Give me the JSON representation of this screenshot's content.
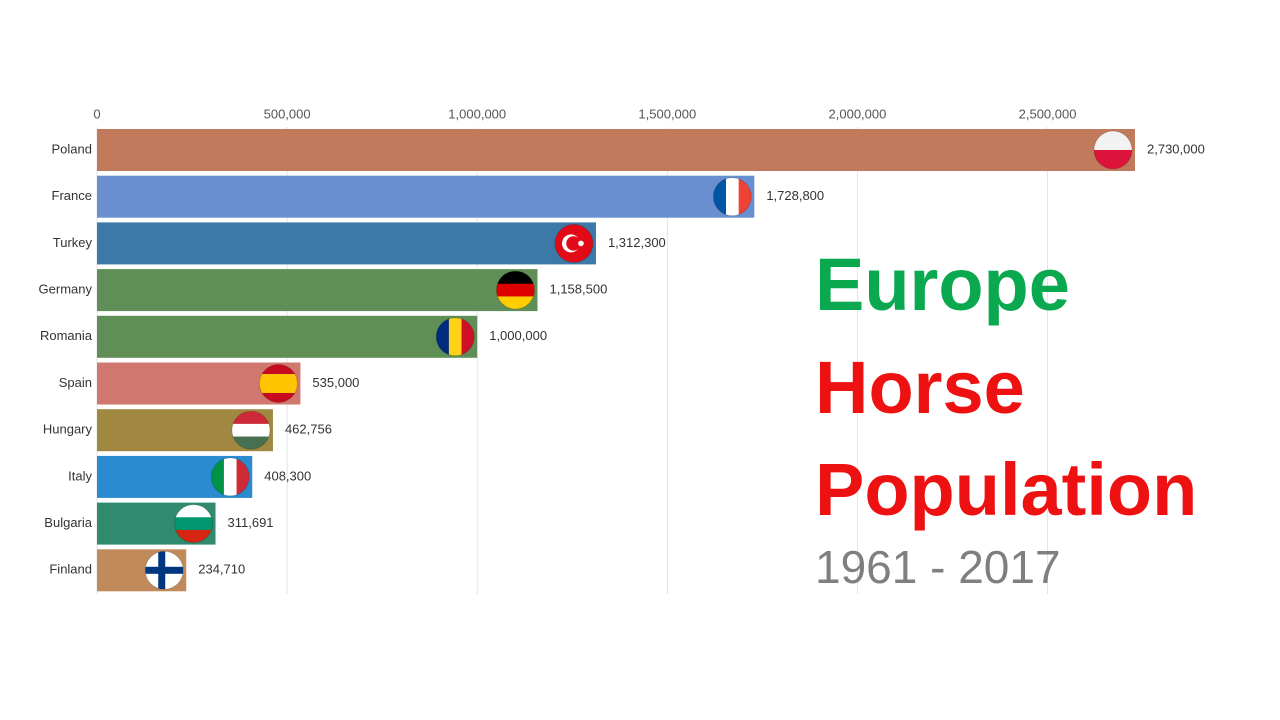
{
  "chart_data": {
    "type": "bar",
    "orientation": "horizontal",
    "title_lines": [
      "Europe",
      "Horse",
      "Population"
    ],
    "title_colors": [
      "#0aa84f",
      "#ee1111",
      "#ee1111"
    ],
    "subtitle": "1961 - 2017",
    "categories": [
      "Poland",
      "France",
      "Turkey",
      "Germany",
      "Romania",
      "Spain",
      "Hungary",
      "Italy",
      "Bulgaria",
      "Finland"
    ],
    "values": [
      2730000,
      1728800,
      1312300,
      1158500,
      1000000,
      535000,
      462756,
      408300,
      311691,
      234710
    ],
    "value_labels": [
      "2,730,000",
      "1,728,800",
      "1,312,300",
      "1,158,500",
      "1,000,000",
      "535,000",
      "462,756",
      "408,300",
      "311,691",
      "234,710"
    ],
    "colors": [
      "#c17a5b",
      "#6a8fd1",
      "#3c78a8",
      "#5f8f56",
      "#5f8f56",
      "#d0776f",
      "#a08840",
      "#2a8bd0",
      "#2f8a6e",
      "#c08a5b"
    ],
    "xlim": [
      0,
      2730000
    ],
    "xticks": [
      0,
      {
        "value": 500000,
        "label": "500,000"
      },
      {
        "value": 1000000,
        "label": "1,000,000"
      },
      {
        "value": 1500000,
        "label": "1,500,000"
      },
      {
        "value": 2000000,
        "label": "2,000,000"
      },
      {
        "value": 2500000,
        "label": "2,500,000"
      }
    ],
    "grid": true
  }
}
